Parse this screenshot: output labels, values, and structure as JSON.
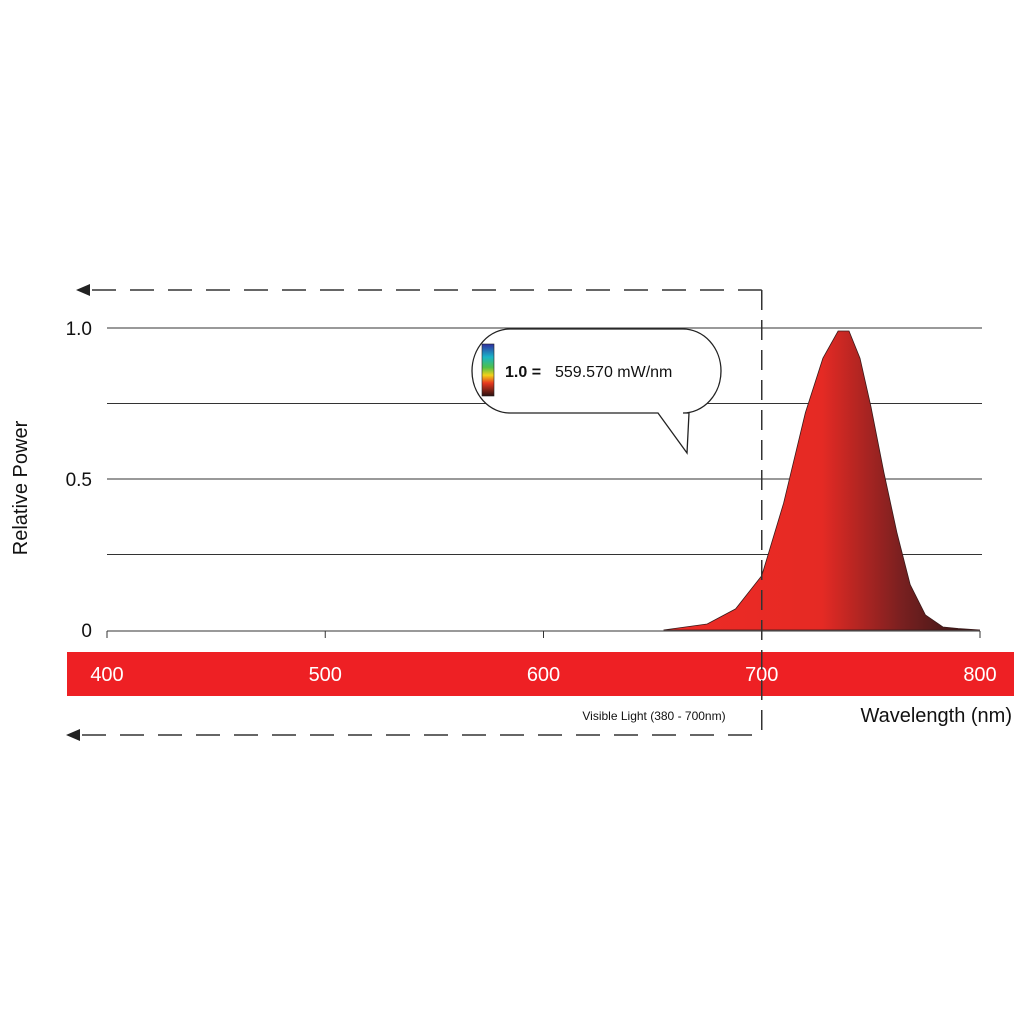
{
  "chart_data": {
    "type": "area",
    "xlabel": "Wavelength (nm)",
    "ylabel": "Relative Power",
    "xlim": [
      400,
      800
    ],
    "ylim": [
      0,
      1.0
    ],
    "x_ticks": [
      "400",
      "500",
      "600",
      "700",
      "800"
    ],
    "y_ticks": [
      "0",
      "0.5",
      "1.0"
    ],
    "grid": true,
    "series": [
      {
        "x": [
          655,
          675,
          688,
          700,
          710,
          720,
          728,
          735,
          740,
          745,
          750,
          756,
          762,
          768,
          775,
          783,
          790,
          800
        ],
        "y": [
          0.0,
          0.02,
          0.07,
          0.18,
          0.42,
          0.72,
          0.9,
          0.99,
          0.99,
          0.9,
          0.74,
          0.52,
          0.32,
          0.15,
          0.05,
          0.01,
          0.005,
          0.0
        ]
      }
    ],
    "annotations": {
      "visible_light_label": "Visible Light (380 - 700nm)",
      "tooltip_bold": "1.0 =",
      "tooltip_value": "559.570 mW/nm"
    },
    "colors": {
      "band": "#ee2024",
      "area_light": "#ee2b26",
      "area_dark": "#2a1414",
      "grid": "#333333"
    }
  }
}
